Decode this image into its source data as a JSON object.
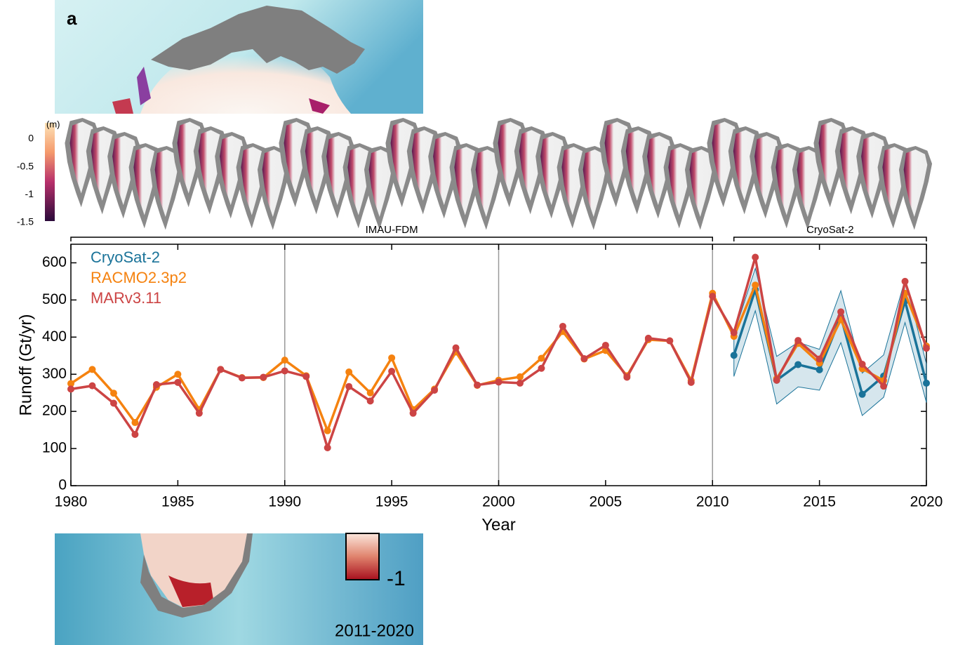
{
  "panel_label": "a",
  "top_colorbar": {
    "unit_label": "(m)",
    "ticks": [
      0,
      -0.5,
      -1,
      -1.5
    ]
  },
  "bottom_map": {
    "colorbar_tick": "-1",
    "period": "2011-2020"
  },
  "chart_data": {
    "type": "line",
    "x_label": "Year",
    "y_label": "Runoff (Gt/yr)",
    "x": [
      1980,
      1981,
      1982,
      1983,
      1984,
      1985,
      1986,
      1987,
      1988,
      1989,
      1990,
      1991,
      1992,
      1993,
      1994,
      1995,
      1996,
      1997,
      1998,
      1999,
      2000,
      2001,
      2002,
      2003,
      2004,
      2005,
      2006,
      2007,
      2008,
      2009,
      2010,
      2011,
      2012,
      2013,
      2014,
      2015,
      2016,
      2017,
      2018,
      2019,
      2020
    ],
    "series": [
      {
        "name": "CryoSat-2",
        "color": "#1a7399",
        "x": [
          2011,
          2012,
          2013,
          2014,
          2015,
          2016,
          2017,
          2018,
          2019,
          2020
        ],
        "values": [
          351,
          528,
          284,
          326,
          312,
          455,
          246,
          295,
          497,
          276
        ],
        "error": [
          57,
          57,
          64,
          60,
          55,
          70,
          57,
          57,
          58,
          52
        ]
      },
      {
        "name": "RACMO2.3p2",
        "color": "#f5820f",
        "values": [
          275,
          313,
          249,
          170,
          265,
          300,
          205,
          313,
          291,
          291,
          338,
          296,
          148,
          306,
          250,
          344,
          205,
          260,
          360,
          270,
          284,
          293,
          343,
          415,
          341,
          364,
          296,
          393,
          390,
          283,
          518,
          402,
          540,
          288,
          383,
          330,
          447,
          315,
          283,
          518,
          376
        ]
      },
      {
        "name": "MARv3.11",
        "color": "#cc4444",
        "values": [
          260,
          269,
          222,
          138,
          272,
          278,
          195,
          313,
          290,
          292,
          309,
          294,
          102,
          267,
          228,
          308,
          195,
          257,
          371,
          271,
          279,
          276,
          316,
          429,
          342,
          378,
          292,
          397,
          390,
          278,
          510,
          412,
          615,
          284,
          391,
          341,
          468,
          327,
          268,
          550,
          370
        ]
      }
    ],
    "xlim": [
      1980,
      2020
    ],
    "xticks": [
      1980,
      1985,
      1990,
      1995,
      2000,
      2005,
      2010,
      2015,
      2020
    ],
    "ylim": [
      0,
      650
    ],
    "yticks": [
      0,
      100,
      200,
      300,
      400,
      500,
      600
    ],
    "vertical_lines": [
      1990,
      2000,
      2010
    ],
    "legend": "upper left",
    "annotations": [
      {
        "text": "IMAU-FDM",
        "x_range": [
          1980,
          2010
        ]
      },
      {
        "text": "CryoSat-2",
        "x_range": [
          2011,
          2020
        ]
      }
    ]
  }
}
